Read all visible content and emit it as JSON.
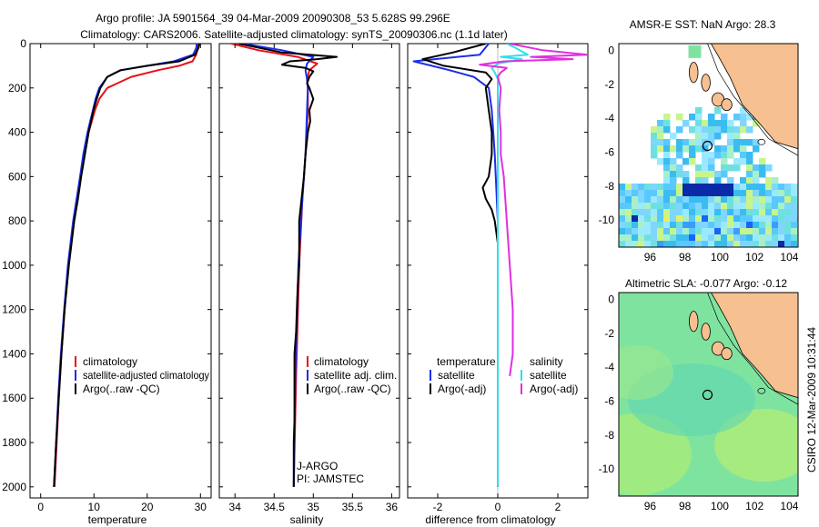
{
  "header": {
    "line1": "Argo profile: JA 5901564_39 04-Mar-2009 20090308_53 5.628S 99.296E",
    "line2": "Climatology: CARS2006. Satellite-adjusted climatology: synTS_20090306.nc (1.1d later)"
  },
  "footer_stamp": "CSIRO 12-Mar-2009 10:31:44",
  "colors": {
    "red": "#e8101a",
    "blue": "#1a2ee8",
    "black": "#000000",
    "cyan": "#30e0e8",
    "magenta": "#e030e0",
    "land": "#f7c090",
    "sla_sea": "#7fe3a0"
  },
  "chart_data": [
    {
      "type": "line",
      "id": "temperature",
      "xlabel": "temperature",
      "ylabel": "",
      "xlim": [
        -2,
        32
      ],
      "ylim": [
        2050,
        0
      ],
      "xticks": [
        0,
        10,
        20,
        30
      ],
      "yticks": [
        0,
        200,
        400,
        600,
        800,
        1000,
        1200,
        1400,
        1600,
        1800,
        2000
      ],
      "series": [
        {
          "name": "climatology",
          "color": "red",
          "depth": [
            0,
            20,
            50,
            80,
            100,
            120,
            150,
            200,
            250,
            300,
            400,
            500,
            600,
            800,
            1000,
            1200,
            1400,
            1600,
            1800,
            2000
          ],
          "values": [
            29.6,
            29.5,
            29.2,
            28.5,
            26,
            22,
            17,
            12.5,
            11,
            10.2,
            9,
            8.2,
            7.5,
            6.2,
            5.2,
            4.5,
            3.9,
            3.4,
            3.0,
            2.6
          ]
        },
        {
          "name": "satellite-adjusted climatology",
          "color": "blue",
          "depth": [
            0,
            20,
            50,
            80,
            100,
            120,
            150,
            200,
            250,
            300,
            400,
            500,
            600,
            800,
            1000,
            1200,
            1400,
            1600,
            1800,
            2000
          ],
          "values": [
            29.3,
            29.2,
            28.6,
            25,
            20,
            15,
            12.5,
            11,
            10.3,
            9.8,
            8.8,
            8.0,
            7.4,
            6.1,
            5.1,
            4.4,
            3.8,
            3.3,
            2.9,
            2.5
          ]
        },
        {
          "name": "Argo(..raw -QC)",
          "color": "black",
          "depth": [
            0,
            20,
            50,
            80,
            100,
            120,
            150,
            200,
            250,
            300,
            400,
            500,
            600,
            700,
            800,
            1000,
            1200,
            1400,
            1600,
            1800,
            2000
          ],
          "values": [
            29.8,
            29.6,
            29.0,
            26,
            20,
            15,
            12.5,
            11.2,
            10.5,
            9.9,
            9.0,
            8.3,
            7.6,
            7.0,
            6.3,
            5.3,
            4.5,
            3.9,
            3.4,
            2.9,
            2.5
          ]
        }
      ],
      "legend": [
        "climatology",
        "satellite-adjusted climatology",
        "Argo(..raw -QC)"
      ]
    },
    {
      "type": "line",
      "id": "salinity",
      "xlabel": "salinity",
      "xlim": [
        33.8,
        36.1
      ],
      "ylim": [
        2050,
        0
      ],
      "xticks": [
        34,
        34.5,
        35,
        35.5,
        36
      ],
      "series": [
        {
          "name": "climatology",
          "color": "red",
          "depth": [
            0,
            30,
            60,
            90,
            120,
            160,
            200,
            300,
            500,
            700,
            1000,
            1500,
            2000
          ],
          "values": [
            33.95,
            34.3,
            34.8,
            35.05,
            34.95,
            34.92,
            34.93,
            34.93,
            34.9,
            34.86,
            34.82,
            34.78,
            34.75
          ]
        },
        {
          "name": "satellite adj. clim.",
          "color": "blue",
          "depth": [
            0,
            30,
            60,
            90,
            120,
            160,
            200,
            300,
            500,
            700,
            1000,
            1500,
            2000
          ],
          "values": [
            34.1,
            34.6,
            35.0,
            34.92,
            34.9,
            34.92,
            34.93,
            34.92,
            34.9,
            34.86,
            34.81,
            34.77,
            34.75
          ]
        },
        {
          "name": "Argo(..raw -QC)",
          "color": "black",
          "depth": [
            0,
            40,
            60,
            70,
            80,
            95,
            110,
            125,
            150,
            180,
            200,
            250,
            300,
            350,
            400,
            500,
            600,
            700,
            800,
            900,
            1000,
            1100,
            1200,
            1300,
            1400,
            1500,
            1600,
            1700,
            1800,
            1900,
            2000
          ],
          "values": [
            34.05,
            34.6,
            35.3,
            35.05,
            34.7,
            34.6,
            34.9,
            35.0,
            34.95,
            34.92,
            34.95,
            35.0,
            34.95,
            34.96,
            34.93,
            34.9,
            34.88,
            34.85,
            34.82,
            34.82,
            34.82,
            34.8,
            34.79,
            34.78,
            34.76,
            34.76,
            34.76,
            34.76,
            34.75,
            34.75,
            34.75
          ]
        }
      ],
      "legend": [
        "climatology",
        "satellite adj. clim.",
        "Argo(..raw -QC)"
      ],
      "annotations": [
        "J-ARGO",
        "PI: JAMSTEC"
      ]
    },
    {
      "type": "line",
      "id": "difference",
      "xlabel": "difference from climatology",
      "xlim": [
        -3,
        3
      ],
      "ylim": [
        2050,
        0
      ],
      "xticks": [
        -2,
        0,
        2
      ],
      "series": [
        {
          "name": "temperature satellite",
          "color": "blue",
          "depth": [
            0,
            50,
            80,
            100,
            120,
            150,
            200,
            300,
            500,
            800,
            1000,
            1500,
            2000
          ],
          "values": [
            -0.3,
            -0.6,
            -2.8,
            -2.2,
            -1.6,
            -0.8,
            -0.3,
            -0.2,
            -0.1,
            0,
            0,
            0,
            0
          ]
        },
        {
          "name": "temperature Argo(-adj)",
          "color": "black",
          "depth": [
            0,
            40,
            70,
            100,
            130,
            160,
            200,
            300,
            400,
            500,
            600,
            650,
            700,
            750,
            800,
            900,
            1000,
            1200,
            1400,
            1500,
            1600,
            1800,
            2000
          ],
          "values": [
            -0.4,
            -1.5,
            -2.5,
            -1.8,
            -0.4,
            -0.2,
            -0.4,
            -0.3,
            -0.2,
            -0.2,
            -0.3,
            -0.5,
            -0.4,
            -0.2,
            -0.1,
            0,
            0,
            0,
            0,
            0,
            0,
            0,
            0
          ]
        },
        {
          "name": "salinity satellite",
          "color": "cyan",
          "depth": [
            0,
            20,
            50,
            60,
            70,
            90,
            110,
            130,
            160,
            200,
            300,
            500,
            800,
            1000,
            1500,
            2000
          ],
          "values": [
            0.3,
            0.6,
            1.0,
            0.1,
            0.8,
            0.0,
            -0.2,
            -0.1,
            0,
            0,
            0,
            0,
            0,
            0,
            0,
            0
          ]
        },
        {
          "name": "salinity Argo(-adj)",
          "color": "magenta",
          "depth": [
            0,
            30,
            50,
            60,
            70,
            80,
            95,
            110,
            130,
            150,
            200,
            300,
            400,
            500,
            600,
            800,
            1000,
            1200,
            1400,
            1500
          ],
          "values": [
            0.4,
            1.5,
            3.0,
            1.1,
            2.5,
            0.2,
            -0.6,
            0.3,
            0.1,
            0.0,
            0.1,
            0.05,
            0.1,
            0.1,
            0.2,
            0.3,
            0.4,
            0.5,
            0.5,
            0.4
          ]
        }
      ],
      "legend": {
        "temperature": {
          "title": "temperature",
          "items": [
            "satellite",
            "Argo(-adj)"
          ]
        },
        "salinity": {
          "title": "salinity",
          "items": [
            "satellite",
            "Argo(-adj)"
          ]
        }
      }
    },
    {
      "type": "heatmap",
      "id": "sst_map",
      "title": "AMSR-E SST: NaN Argo: 28.3",
      "xlim": [
        94.2,
        104.5
      ],
      "ylim": [
        -11.6,
        0.4
      ],
      "xticks": [
        96,
        98,
        100,
        102,
        104
      ],
      "yticks": [
        0,
        -2,
        -4,
        -6,
        -8,
        -10
      ],
      "argo_position": {
        "lon": 99.296,
        "lat": -5.628
      }
    },
    {
      "type": "heatmap",
      "id": "sla_map",
      "title": "Altimetric SLA: -0.077 Argo: -0.12",
      "xlim": [
        94.2,
        104.5
      ],
      "ylim": [
        -11.6,
        0.4
      ],
      "xticks": [
        96,
        98,
        100,
        102,
        104
      ],
      "yticks": [
        0,
        -2,
        -4,
        -6,
        -8,
        -10
      ],
      "argo_position": {
        "lon": 99.296,
        "lat": -5.628
      }
    }
  ]
}
